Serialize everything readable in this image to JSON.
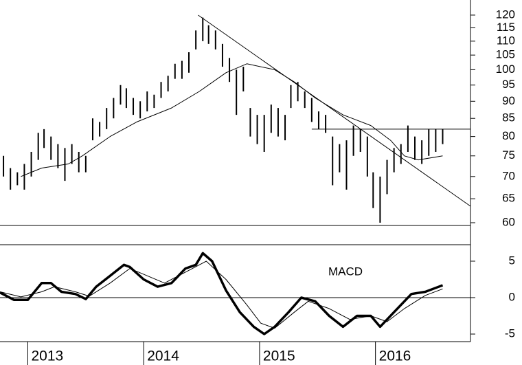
{
  "chart_data": [
    {
      "type": "ohlc",
      "color": "#000000",
      "log_scale": true,
      "ylim": [
        59.45,
        126.2
      ],
      "yticks": [
        60,
        65,
        70,
        75,
        80,
        85,
        90,
        95,
        100,
        105,
        110,
        115,
        120
      ],
      "xlim": [
        2012.76,
        2016.82
      ],
      "x": [
        2012.79,
        2012.85,
        2012.91,
        2012.97,
        2013.03,
        2013.09,
        2013.14,
        2013.2,
        2013.26,
        2013.32,
        2013.38,
        2013.44,
        2013.5,
        2013.56,
        2013.62,
        2013.68,
        2013.74,
        2013.8,
        2013.85,
        2013.91,
        2013.97,
        2014.03,
        2014.09,
        2014.15,
        2014.21,
        2014.27,
        2014.33,
        2014.39,
        2014.45,
        2014.51,
        2014.56,
        2014.62,
        2014.68,
        2014.74,
        2014.8,
        2014.86,
        2014.92,
        2014.98,
        2015.04,
        2015.1,
        2015.16,
        2015.22,
        2015.27,
        2015.33,
        2015.39,
        2015.45,
        2015.51,
        2015.57,
        2015.63,
        2015.69,
        2015.75,
        2015.81,
        2015.87,
        2015.93,
        2015.98,
        2016.04,
        2016.1,
        2016.16,
        2016.22,
        2016.28,
        2016.34,
        2016.4,
        2016.46,
        2016.52,
        2016.58
      ],
      "high": [
        75,
        72,
        71,
        73,
        76,
        81,
        82,
        80,
        78,
        77,
        78,
        76,
        75,
        85,
        84,
        88,
        91,
        95,
        94,
        91,
        90,
        93,
        92,
        96,
        98,
        102,
        103,
        106,
        114,
        119,
        116,
        114,
        109,
        104,
        100,
        101,
        88,
        86,
        86,
        89,
        88,
        86,
        95,
        96,
        93,
        91,
        87,
        86,
        80,
        78,
        79,
        83,
        82,
        80,
        71,
        70,
        74,
        77,
        78,
        83,
        80,
        79,
        82,
        82,
        82
      ],
      "low": [
        70,
        67,
        68,
        67,
        70,
        74,
        77,
        74,
        72,
        69,
        73,
        71,
        71,
        79,
        80,
        82,
        85,
        89,
        88,
        86,
        85,
        87,
        88,
        91,
        93,
        97,
        97,
        99,
        107,
        110,
        109,
        107,
        101,
        96,
        86,
        93,
        80,
        78,
        76,
        81,
        80,
        79,
        88,
        90,
        88,
        84,
        82,
        81,
        68,
        71,
        67,
        75,
        76,
        70,
        63,
        60,
        66,
        71,
        73,
        76,
        74,
        73,
        75,
        76,
        78
      ],
      "moving_average": {
        "color": "#000000",
        "x": [
          2012.94,
          2013.12,
          2013.35,
          2013.47,
          2013.71,
          2013.94,
          2014.24,
          2014.48,
          2014.71,
          2014.89,
          2015.13,
          2015.3,
          2015.48,
          2015.72,
          2015.96,
          2016.13,
          2016.25,
          2016.37,
          2016.58
        ],
        "values": [
          70,
          72,
          73,
          75,
          80,
          84,
          88,
          93,
          99,
          102,
          100,
          96,
          91,
          86,
          83,
          79,
          75,
          74,
          75
        ]
      },
      "trendlines": [
        {
          "x": [
            2014.47,
            2016.82
          ],
          "values": [
            120,
            63.4
          ]
        },
        {
          "x": [
            2015.45,
            2016.82
          ],
          "values": [
            82,
            82
          ]
        }
      ]
    },
    {
      "type": "line",
      "annotation": "MACD",
      "ylim": [
        -5.85,
        7.26
      ],
      "yticks": [
        -5,
        0,
        5
      ],
      "xlim": [
        2012.76,
        2016.82
      ],
      "xticks": [
        2013,
        2014,
        2015,
        2016
      ],
      "series": [
        {
          "color": "#000000",
          "line_width": 3.5,
          "x": [
            2012.76,
            2012.88,
            2013.0,
            2013.12,
            2013.2,
            2013.29,
            2013.41,
            2013.5,
            2013.59,
            2013.71,
            2013.83,
            2013.88,
            2014.0,
            2014.12,
            2014.24,
            2014.36,
            2014.45,
            2014.51,
            2014.59,
            2014.71,
            2014.83,
            2014.95,
            2015.04,
            2015.13,
            2015.25,
            2015.36,
            2015.48,
            2015.6,
            2015.72,
            2015.84,
            2015.96,
            2016.04,
            2016.16,
            2016.31,
            2016.43,
            2016.58
          ],
          "values": [
            0.7,
            -0.3,
            -0.3,
            2,
            2,
            0.8,
            0.5,
            -0.2,
            1.5,
            3,
            4.5,
            4.2,
            2.5,
            1.5,
            2,
            4,
            4.5,
            6.1,
            5,
            1,
            -2,
            -4,
            -5,
            -4,
            -2,
            0,
            -0.5,
            -2.5,
            -4,
            -2.5,
            -2.5,
            -4,
            -2,
            0.5,
            0.8,
            1.7
          ]
        },
        {
          "color": "#000000",
          "line_width": 1,
          "x": [
            2012.76,
            2012.94,
            2013.12,
            2013.23,
            2013.41,
            2013.53,
            2013.71,
            2013.88,
            2014.03,
            2014.18,
            2014.36,
            2014.54,
            2014.71,
            2014.89,
            2015.01,
            2015.13,
            2015.3,
            2015.42,
            2015.6,
            2015.78,
            2015.96,
            2016.1,
            2016.25,
            2016.43,
            2016.58
          ],
          "values": [
            0.8,
            0.1,
            0.8,
            1.5,
            0.8,
            0.2,
            2,
            4,
            3,
            2,
            3.5,
            5,
            2.5,
            -1,
            -3.5,
            -4.2,
            -2,
            -0.5,
            -1.5,
            -3,
            -2.5,
            -3.3,
            -1.5,
            0.3,
            1.2
          ]
        }
      ]
    }
  ]
}
